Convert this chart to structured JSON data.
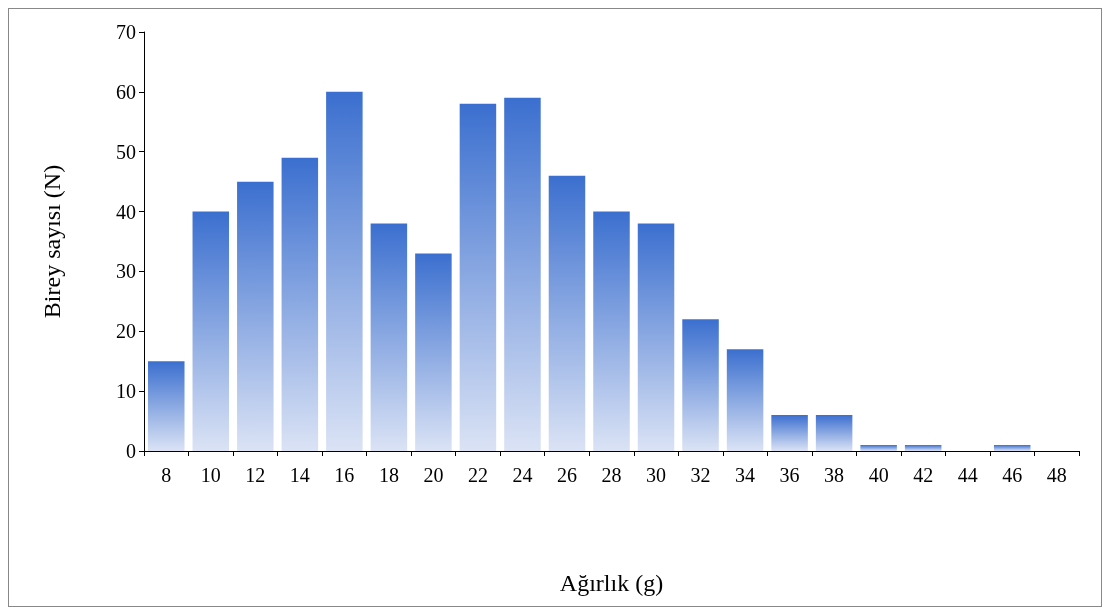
{
  "chart_data": {
    "type": "bar",
    "xlabel": "Ağırlık (g)",
    "ylabel": "Birey sayısı (N)",
    "categories": [
      "8",
      "10",
      "12",
      "14",
      "16",
      "18",
      "20",
      "22",
      "24",
      "26",
      "28",
      "30",
      "32",
      "34",
      "36",
      "38",
      "40",
      "42",
      "44",
      "46",
      "48"
    ],
    "values": [
      15,
      40,
      45,
      49,
      60,
      38,
      33,
      58,
      59,
      46,
      40,
      38,
      22,
      17,
      6,
      6,
      1,
      1,
      0,
      1,
      0
    ],
    "color": "#3b6fcf",
    "ylim": [
      0,
      70
    ],
    "yticks": [
      0,
      10,
      20,
      30,
      40,
      50,
      60,
      70
    ],
    "grid": false
  }
}
